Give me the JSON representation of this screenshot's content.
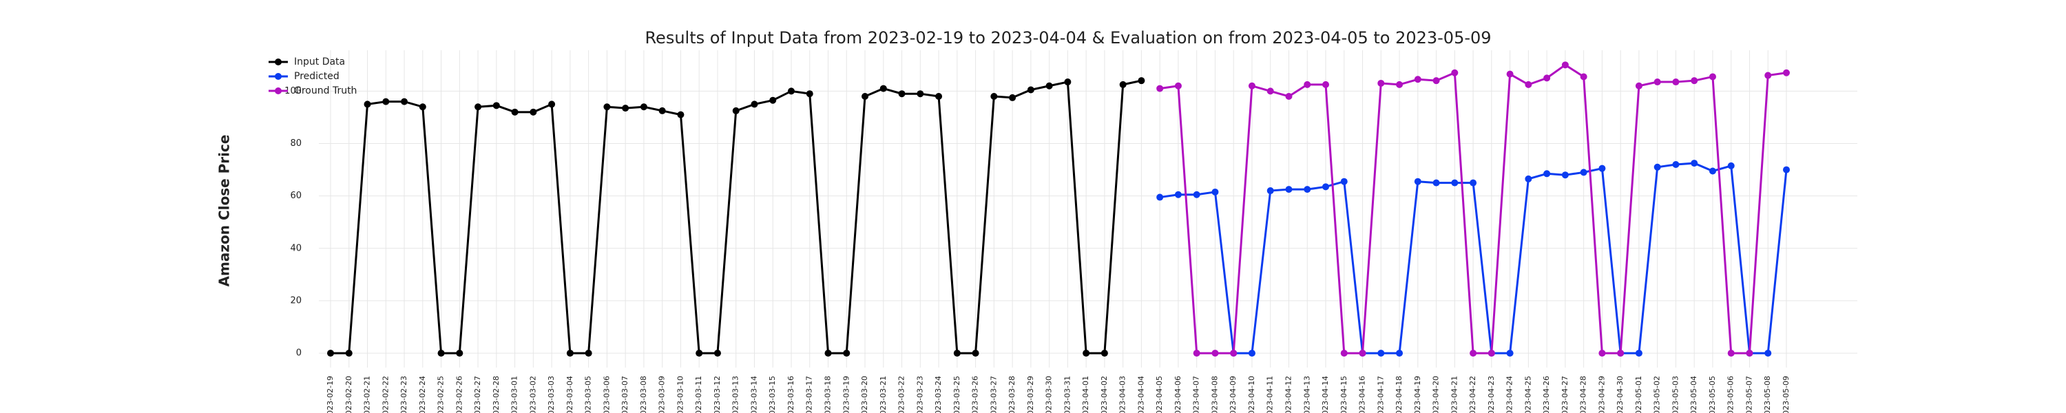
{
  "chart_data": {
    "type": "line",
    "title": "Results of Input Data from 2023-02-19 to 2023-04-04 & Evaluation on from 2023-04-05 to 2023-05-09",
    "y_label": "Amazon Close Price",
    "categories": [
      "2023-02-19",
      "2023-02-20",
      "2023-02-21",
      "2023-02-22",
      "2023-02-23",
      "2023-02-24",
      "2023-02-25",
      "2023-02-26",
      "2023-02-27",
      "2023-02-28",
      "2023-03-01",
      "2023-03-02",
      "2023-03-03",
      "2023-03-04",
      "2023-03-05",
      "2023-03-06",
      "2023-03-07",
      "2023-03-08",
      "2023-03-09",
      "2023-03-10",
      "2023-03-11",
      "2023-03-12",
      "2023-03-13",
      "2023-03-14",
      "2023-03-15",
      "2023-03-16",
      "2023-03-17",
      "2023-03-18",
      "2023-03-19",
      "2023-03-20",
      "2023-03-21",
      "2023-03-22",
      "2023-03-23",
      "2023-03-24",
      "2023-03-25",
      "2023-03-26",
      "2023-03-27",
      "2023-03-28",
      "2023-03-29",
      "2023-03-30",
      "2023-03-31",
      "2023-04-01",
      "2023-04-02",
      "2023-04-03",
      "2023-04-04",
      "2023-04-05",
      "2023-04-06",
      "2023-04-07",
      "2023-04-08",
      "2023-04-09",
      "2023-04-10",
      "2023-04-11",
      "2023-04-12",
      "2023-04-13",
      "2023-04-14",
      "2023-04-15",
      "2023-04-16",
      "2023-04-17",
      "2023-04-18",
      "2023-04-19",
      "2023-04-20",
      "2023-04-21",
      "2023-04-22",
      "2023-04-23",
      "2023-04-24",
      "2023-04-25",
      "2023-04-26",
      "2023-04-27",
      "2023-04-28",
      "2023-04-29",
      "2023-04-30",
      "2023-05-01",
      "2023-05-02",
      "2023-05-03",
      "2023-05-04",
      "2023-05-05",
      "2023-05-06",
      "2023-05-07",
      "2023-05-08",
      "2023-05-09"
    ],
    "series": [
      {
        "name": "Input Data",
        "color": "#000000",
        "values": [
          0,
          0,
          95,
          96,
          96,
          94,
          0,
          0,
          94,
          94.5,
          92,
          92,
          95,
          0,
          0,
          94,
          93.5,
          94,
          92.5,
          91,
          0,
          0,
          92.5,
          95,
          96.5,
          100,
          99,
          0,
          0,
          98,
          101,
          99,
          99,
          98,
          0,
          0,
          98,
          97.5,
          100.5,
          102,
          103.5,
          0,
          0,
          102.5,
          104,
          null,
          null,
          null,
          null,
          null,
          null,
          null,
          null,
          null,
          null,
          null,
          null,
          null,
          null,
          null,
          null,
          null,
          null,
          null,
          null,
          null,
          null,
          null,
          null,
          null,
          null,
          null,
          null,
          null,
          null,
          null,
          null,
          null,
          null,
          null
        ]
      },
      {
        "name": "Predicted",
        "color": "#0a3cf0",
        "values": [
          null,
          null,
          null,
          null,
          null,
          null,
          null,
          null,
          null,
          null,
          null,
          null,
          null,
          null,
          null,
          null,
          null,
          null,
          null,
          null,
          null,
          null,
          null,
          null,
          null,
          null,
          null,
          null,
          null,
          null,
          null,
          null,
          null,
          null,
          null,
          null,
          null,
          null,
          null,
          null,
          null,
          null,
          null,
          null,
          null,
          59.5,
          60.5,
          60.5,
          61.5,
          0,
          0,
          62,
          62.5,
          62.5,
          63.5,
          65.5,
          0,
          0,
          0,
          65.5,
          65,
          65,
          65,
          0,
          0,
          66.5,
          68.5,
          68,
          69,
          70.5,
          0,
          0,
          71,
          72,
          72.5,
          69.5,
          71.5,
          0,
          0,
          70
        ]
      },
      {
        "name": "Ground Truth",
        "color": "#b010c0",
        "values": [
          null,
          null,
          null,
          null,
          null,
          null,
          null,
          null,
          null,
          null,
          null,
          null,
          null,
          null,
          null,
          null,
          null,
          null,
          null,
          null,
          null,
          null,
          null,
          null,
          null,
          null,
          null,
          null,
          null,
          null,
          null,
          null,
          null,
          null,
          null,
          null,
          null,
          null,
          null,
          null,
          null,
          null,
          null,
          null,
          null,
          101,
          102,
          0,
          0,
          0,
          102,
          100,
          98,
          102.5,
          102.5,
          0,
          0,
          103,
          102.5,
          104.5,
          104,
          107,
          0,
          0,
          106.5,
          102.5,
          105,
          110,
          105.5,
          0,
          0,
          102,
          103.5,
          103.5,
          104,
          105.5,
          0,
          0,
          106,
          107
        ]
      }
    ],
    "ylim": [
      -5.5,
      115.6
    ],
    "yticks": [
      0,
      20,
      40,
      60,
      80,
      100
    ],
    "grid": true,
    "legend": "upper left"
  }
}
